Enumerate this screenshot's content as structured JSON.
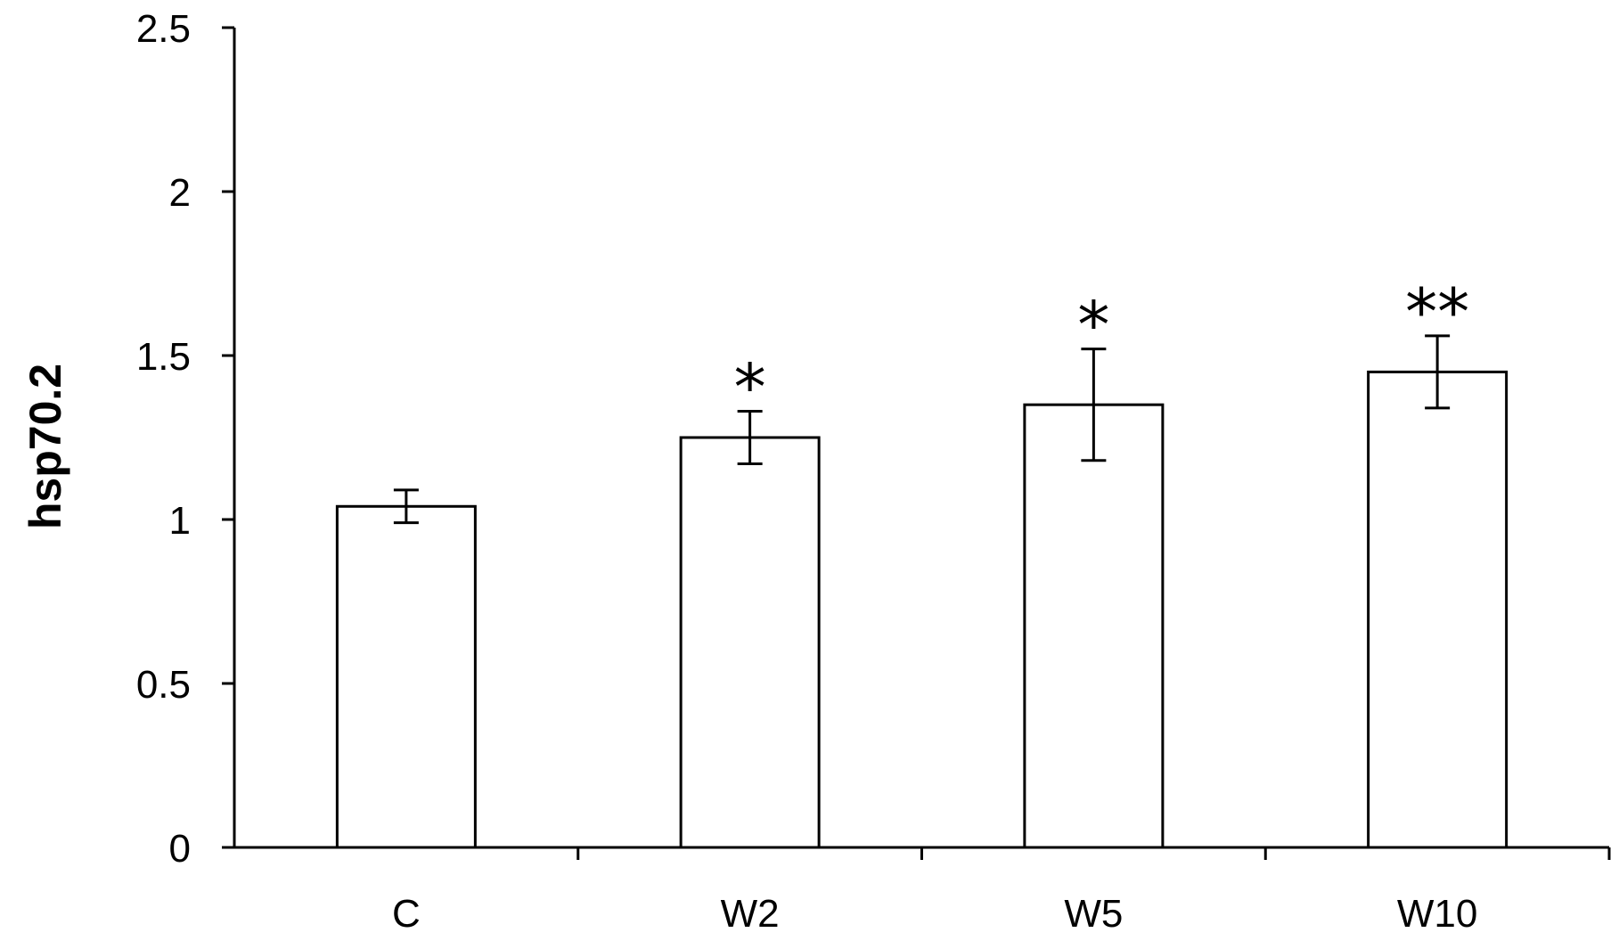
{
  "chart_data": {
    "type": "bar",
    "title": "",
    "xlabel": "",
    "ylabel": "hsp70.2",
    "categories": [
      "C",
      "W2",
      "W5",
      "W10"
    ],
    "values": [
      1.04,
      1.25,
      1.35,
      1.45
    ],
    "error": [
      0.05,
      0.08,
      0.17,
      0.11
    ],
    "significance": [
      "",
      "*",
      "*",
      "**"
    ],
    "ylim": [
      0,
      2.5
    ],
    "yticks": [
      "0",
      "0.5",
      "1",
      "1.5",
      "2",
      "2.5"
    ],
    "grid": false,
    "bar_fill": "#ffffff",
    "bar_stroke": "#000000"
  }
}
